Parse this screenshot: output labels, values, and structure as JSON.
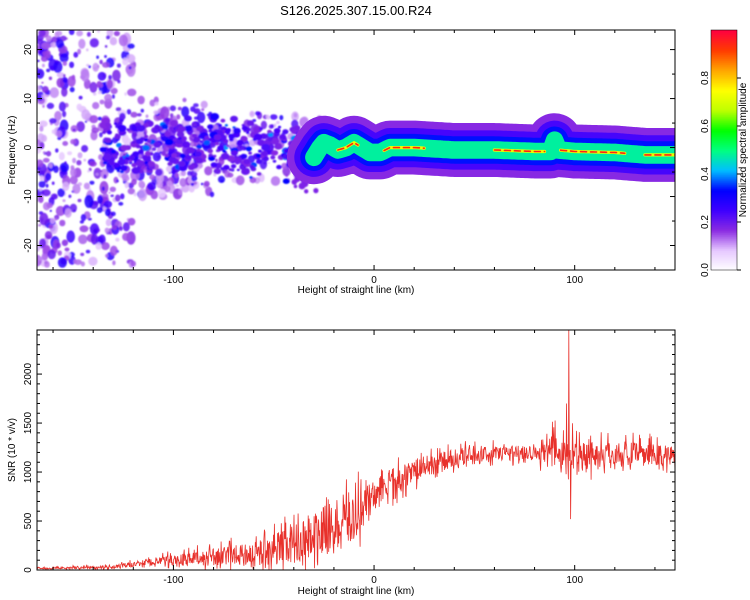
{
  "figure": {
    "title": "S126.2025.307.15.00.R24"
  },
  "chart_data": [
    {
      "type": "heatmap",
      "name": "spectrogram",
      "xlabel": "Height of straight line (km)",
      "ylabel": "Frequency (Hz)",
      "xlim": [
        -168,
        150
      ],
      "ylim": [
        -25,
        24
      ],
      "xticks": [
        -100,
        0,
        100
      ],
      "yticks": [
        -20,
        -10,
        0,
        10,
        20
      ],
      "ridge": [
        {
          "x": -30,
          "y": -2.0
        },
        {
          "x": -27,
          "y": 0.0
        },
        {
          "x": -25,
          "y": 1.0
        },
        {
          "x": -22,
          "y": 0.5
        },
        {
          "x": -18,
          "y": -0.5
        },
        {
          "x": -14,
          "y": 0.0
        },
        {
          "x": -10,
          "y": 1.0
        },
        {
          "x": -6,
          "y": 0.0
        },
        {
          "x": -2,
          "y": -1.0
        },
        {
          "x": 3,
          "y": -1.0
        },
        {
          "x": 8,
          "y": 0.0
        },
        {
          "x": 20,
          "y": 0.0
        },
        {
          "x": 40,
          "y": -0.5
        },
        {
          "x": 60,
          "y": -0.5
        },
        {
          "x": 80,
          "y": -0.8
        },
        {
          "x": 88,
          "y": -0.8
        },
        {
          "x": 90,
          "y": 1.5
        },
        {
          "x": 92,
          "y": -0.5
        },
        {
          "x": 100,
          "y": -0.8
        },
        {
          "x": 120,
          "y": -1.0
        },
        {
          "x": 135,
          "y": -1.5
        },
        {
          "x": 150,
          "y": -1.5
        }
      ],
      "peak_segments": [
        [
          -18,
          -8
        ],
        [
          5,
          25
        ],
        [
          60,
          85
        ],
        [
          93,
          125
        ],
        [
          135,
          150
        ]
      ],
      "colorbar": {
        "label": "Normalized spectral amplitude",
        "ticks": [
          0.0,
          0.2,
          0.4,
          0.6,
          0.8
        ],
        "tick_labels": [
          "0.0",
          "0.2",
          "0.4",
          "0.6",
          "0.8"
        ],
        "range": [
          0,
          1
        ],
        "colors": [
          "#ffffff",
          "#e6c8ff",
          "#8a2be2",
          "#3d00ff",
          "#0000ff",
          "#00bfff",
          "#00ff80",
          "#00ff00",
          "#bfff00",
          "#ffff00",
          "#ffa500",
          "#ff3b00",
          "#ff0040"
        ]
      }
    },
    {
      "type": "line",
      "name": "snr",
      "xlabel": "Height of straight line (km)",
      "ylabel": "SNR (10 * v/v)",
      "xlim": [
        -168,
        150
      ],
      "ylim": [
        0,
        2450
      ],
      "xticks": [
        -100,
        0,
        100
      ],
      "yticks": [
        0,
        500,
        1000,
        1500,
        2000
      ],
      "color": "#e8312b",
      "envelope": [
        {
          "x": -168,
          "base": 15,
          "noise": 20
        },
        {
          "x": -130,
          "base": 30,
          "noise": 40
        },
        {
          "x": -110,
          "base": 80,
          "noise": 100
        },
        {
          "x": -80,
          "base": 120,
          "noise": 220
        },
        {
          "x": -60,
          "base": 150,
          "noise": 300
        },
        {
          "x": -40,
          "base": 250,
          "noise": 500
        },
        {
          "x": -22,
          "base": 400,
          "noise": 650
        },
        {
          "x": -10,
          "base": 520,
          "noise": 700
        },
        {
          "x": 0,
          "base": 750,
          "noise": 400
        },
        {
          "x": 20,
          "base": 1000,
          "noise": 300
        },
        {
          "x": 40,
          "base": 1130,
          "noise": 250
        },
        {
          "x": 60,
          "base": 1180,
          "noise": 200
        },
        {
          "x": 80,
          "base": 1200,
          "noise": 220
        },
        {
          "x": 90,
          "base": 1180,
          "noise": 500
        },
        {
          "x": 100,
          "base": 1150,
          "noise": 450
        },
        {
          "x": 120,
          "base": 1180,
          "noise": 300
        },
        {
          "x": 150,
          "base": 1150,
          "noise": 300
        }
      ],
      "spikes": [
        {
          "x": 97,
          "y": 2450
        },
        {
          "x": 96,
          "y": 1700
        },
        {
          "x": 98,
          "y": 520
        }
      ]
    }
  ]
}
